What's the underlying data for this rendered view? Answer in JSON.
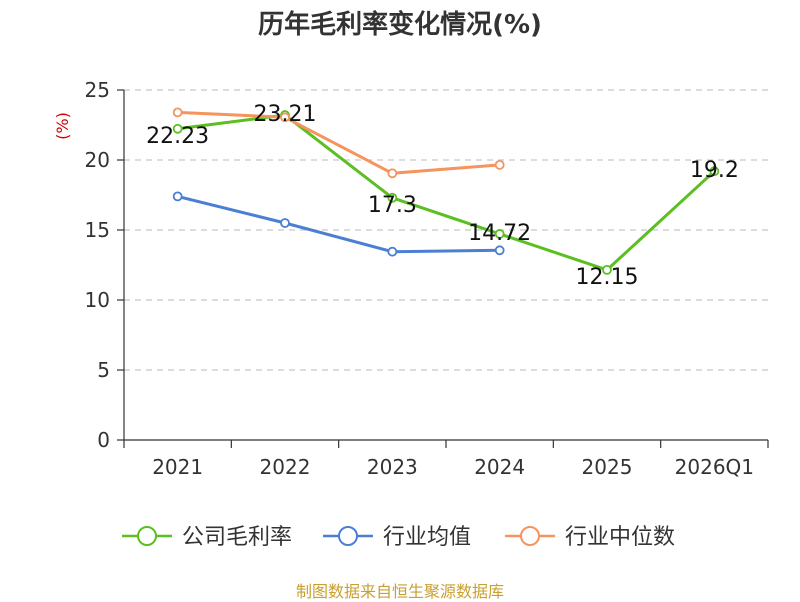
{
  "chart_data": {
    "type": "line",
    "title": "历年毛利率变化情况(%)",
    "ylabel": "(%)",
    "xlabel": "",
    "categories": [
      "2021",
      "2022",
      "2023",
      "2024",
      "2025",
      "2026Q1"
    ],
    "ylim": [
      0,
      25
    ],
    "yticks": [
      0,
      5,
      10,
      15,
      20,
      25
    ],
    "grid": true,
    "legend_position": "bottom",
    "series": [
      {
        "name": "公司毛利率",
        "color": "#5bbf21",
        "values": [
          22.23,
          23.21,
          17.3,
          14.72,
          12.15,
          19.2
        ],
        "labels": [
          "22.23",
          "23.21",
          "17.3",
          "14.72",
          "12.15",
          "19.2"
        ]
      },
      {
        "name": "行业均值",
        "color": "#4a7fd4",
        "values": [
          17.4,
          15.5,
          13.45,
          13.55,
          null,
          null
        ]
      },
      {
        "name": "行业中位数",
        "color": "#f5945c",
        "values": [
          23.4,
          23.05,
          19.05,
          19.65,
          null,
          null
        ]
      }
    ]
  },
  "footer": {
    "source": "制图数据来自恒生聚源数据库"
  }
}
